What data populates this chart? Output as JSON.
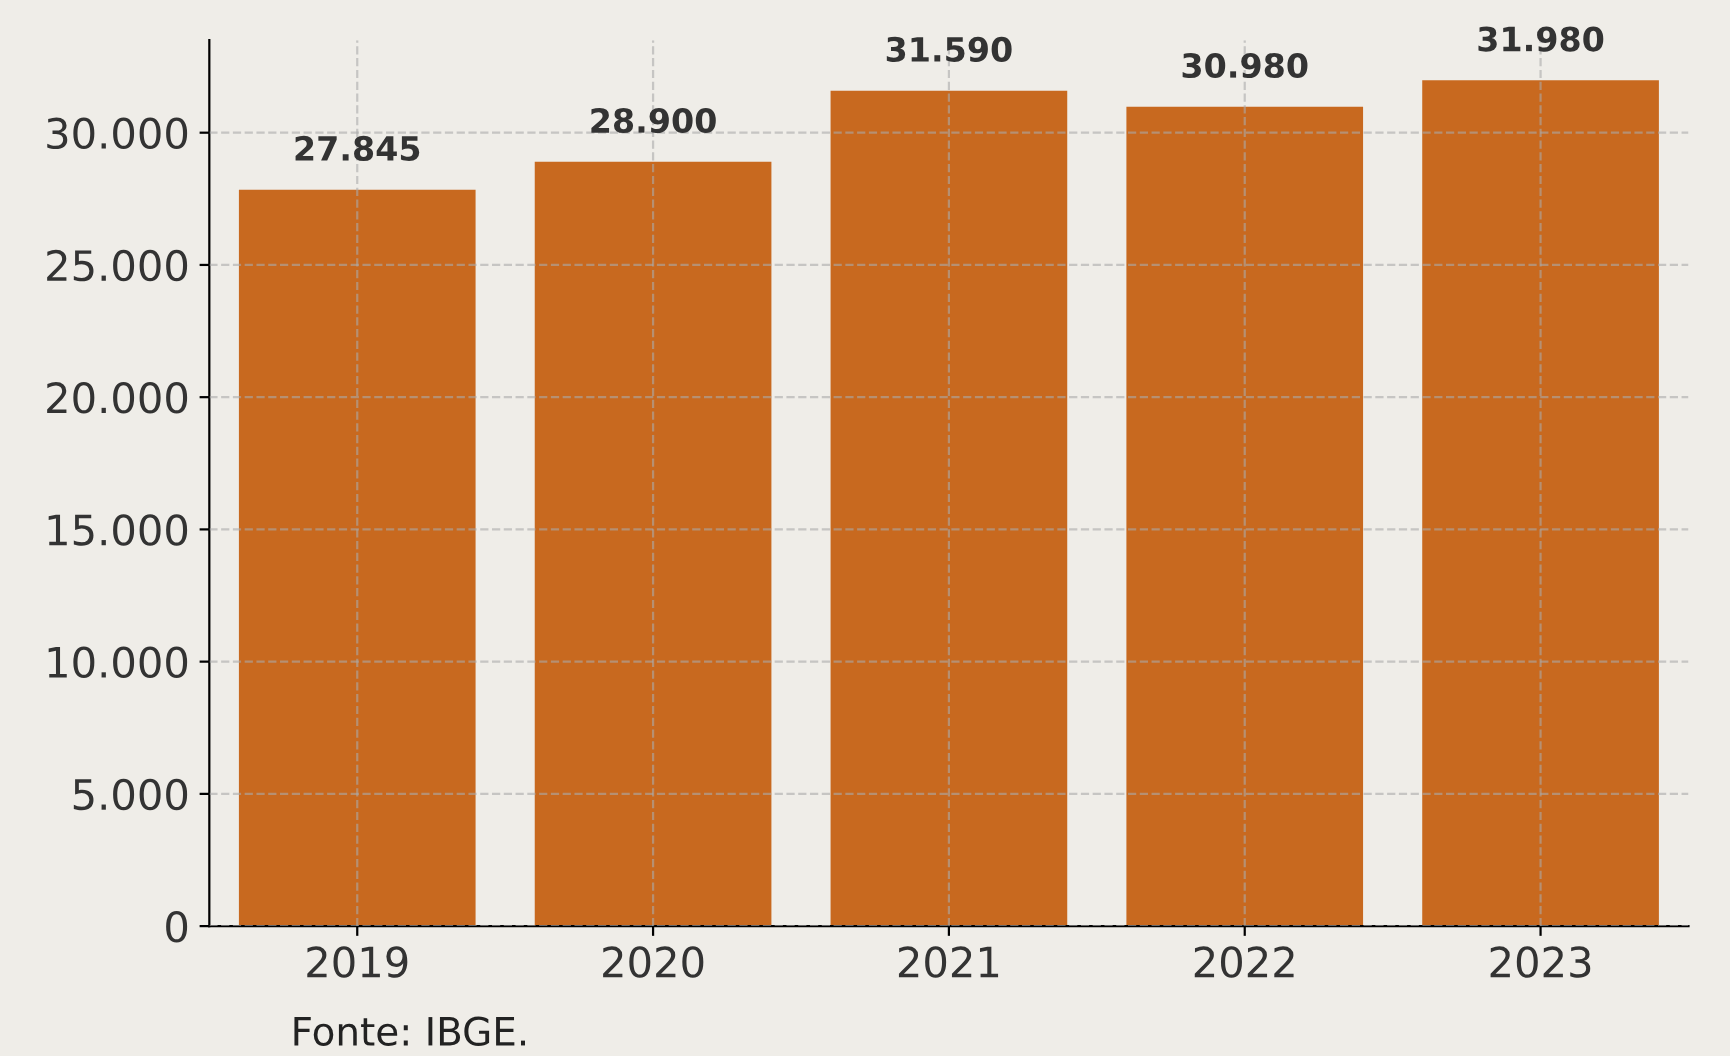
{
  "chart_data": {
    "type": "bar",
    "categories": [
      "2019",
      "2020",
      "2021",
      "2022",
      "2023"
    ],
    "values": [
      27845,
      28900,
      31590,
      30980,
      31980
    ],
    "value_labels": [
      "27.845",
      "28.900",
      "31.590",
      "30.980",
      "31.980"
    ],
    "color": "#c8691f",
    "ylim": [
      0,
      33500
    ],
    "yticks": [
      0,
      {
        "value": 5000,
        "label": "5.000"
      },
      {
        "value": 10000,
        "label": "10.000"
      },
      {
        "value": 15000,
        "label": "15.000"
      },
      {
        "value": 20000,
        "label": "20.000"
      },
      {
        "value": 25000,
        "label": "25.000"
      },
      {
        "value": 30000,
        "label": "30.000"
      }
    ],
    "grid": true,
    "annotations": [
      "Fonte: IBGE."
    ]
  }
}
